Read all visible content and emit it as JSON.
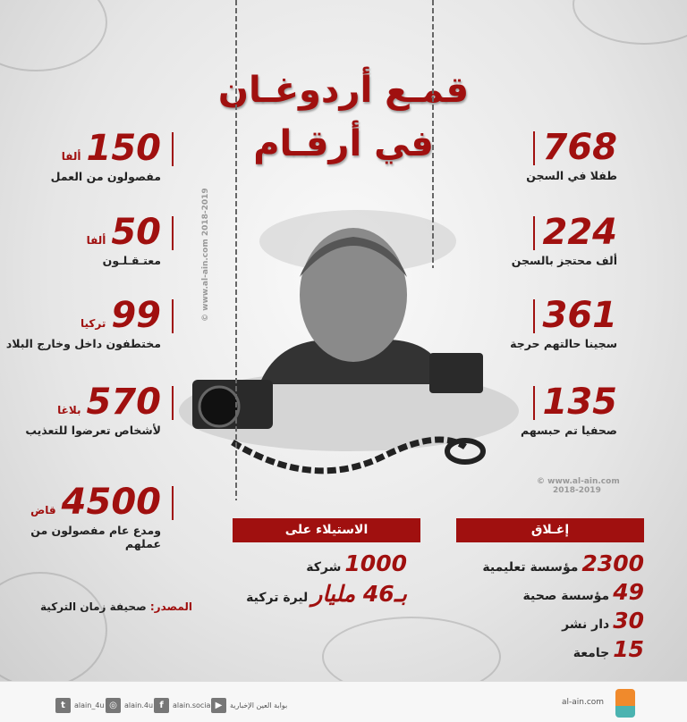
{
  "title": {
    "line1": "قمـع أردوغـان",
    "line2": "في أرقـام"
  },
  "right_stats": [
    {
      "value": "768",
      "label": "طفلا في السجن"
    },
    {
      "value": "224",
      "label": "ألف محتجز بالسجن"
    },
    {
      "value": "361",
      "label": "سجينا حالتهم حرجة"
    },
    {
      "value": "135",
      "label": "صحفيا تم حبسهم"
    }
  ],
  "left_stats": [
    {
      "value": "150",
      "unit": "ألفا",
      "label": "مفصولون من العمل"
    },
    {
      "value": "50",
      "unit": "ألفا",
      "label": "معتـقـلـون"
    },
    {
      "value": "99",
      "unit": "تركيا",
      "label": "مختطفون داخل وخارج البلاد"
    },
    {
      "value": "570",
      "unit": "بلاغا",
      "label": "لأشخاص تعرضوا للتعذيب"
    },
    {
      "value": "4500",
      "unit": "قاض",
      "label": "ومدع عام مفصولون من عملهم"
    }
  ],
  "closure": {
    "header": "إغـلاق",
    "items": [
      {
        "value": "2300",
        "label": "مؤسسة تعليمية"
      },
      {
        "value": "49",
        "label": "مؤسسة صحية"
      },
      {
        "value": "30",
        "label": "دار نشر"
      },
      {
        "value": "15",
        "label": "جامعة"
      }
    ]
  },
  "seizure": {
    "header": "الاستيلاء على",
    "items": [
      {
        "value": "1000",
        "label": "شركة"
      },
      {
        "value": "بـ46 مليار",
        "label": "ليرة تركية"
      }
    ]
  },
  "source": {
    "label": "المصدر:",
    "value": "صحيفة زمان التركية"
  },
  "watermark": {
    "site": "© www.al-ain.com",
    "years": "2018-2019"
  },
  "footer": {
    "twitter": "alain_4u",
    "instagram": "alain.4u",
    "facebook": "alain.social",
    "youtube": "بوابة العين الإخبارية",
    "site": "al-ain.com",
    "logo": "العين الإخبارية"
  },
  "colors": {
    "accent": "#a0100f"
  }
}
